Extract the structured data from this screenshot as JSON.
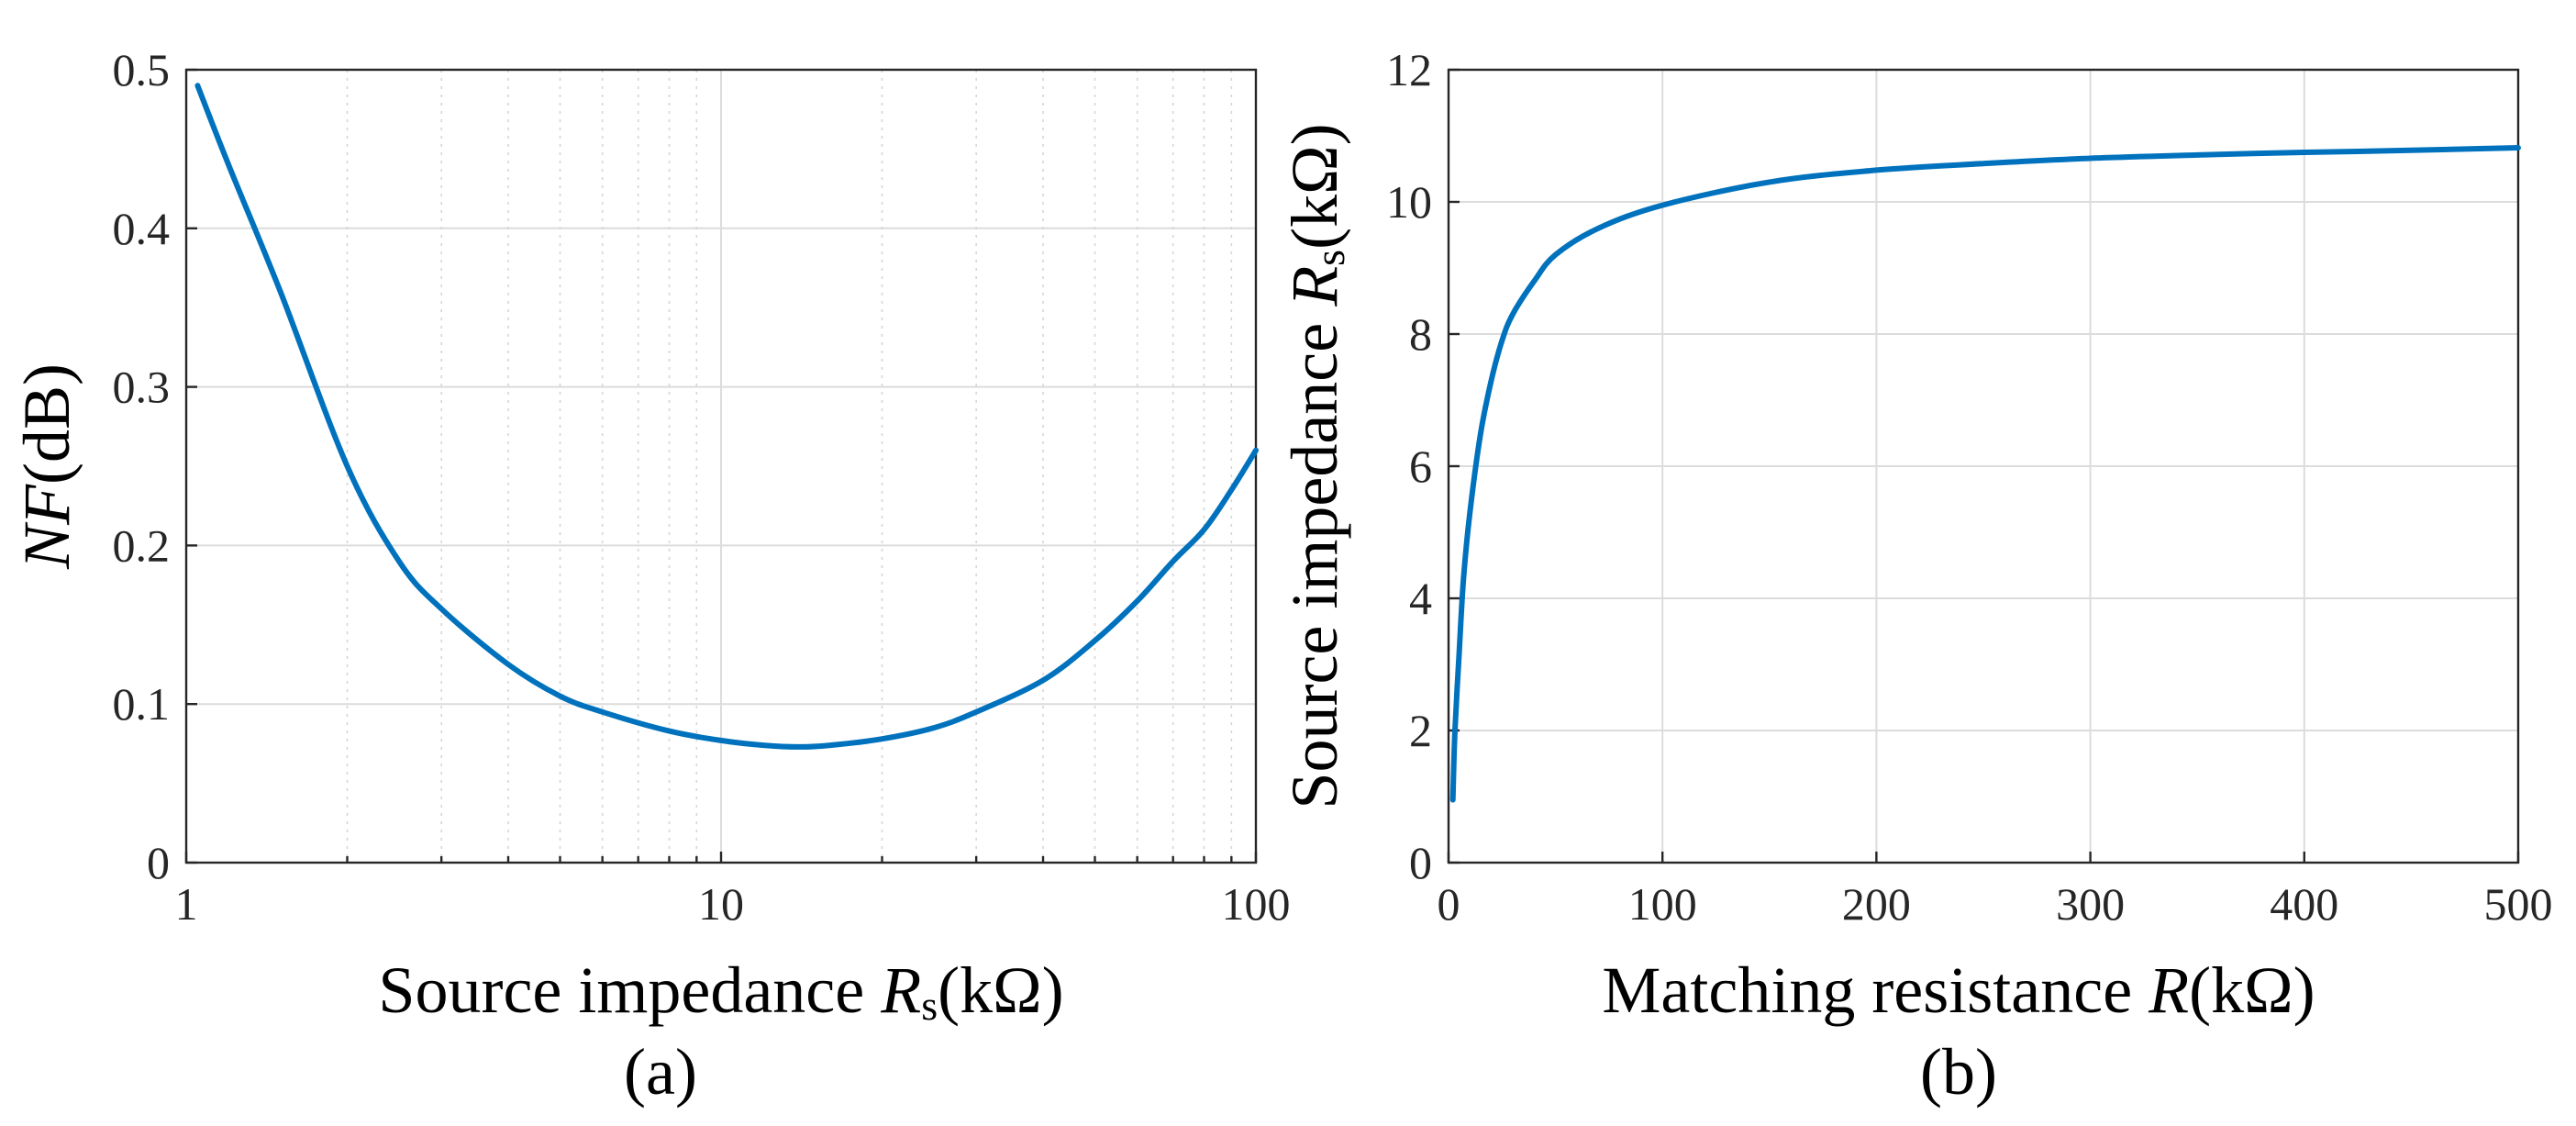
{
  "colors": {
    "curve": "#0072BD",
    "axes": "#262626",
    "grid": "#dcdcdc"
  },
  "chart_data": [
    {
      "id": "a",
      "type": "line",
      "caption": "(a)",
      "xscale": "log",
      "xlim": [
        1,
        100
      ],
      "ylim": [
        0,
        0.5
      ],
      "xticks": [
        1,
        10,
        100
      ],
      "xtick_labels": [
        "1",
        "10",
        "100"
      ],
      "yticks": [
        0,
        0.1,
        0.2,
        0.3,
        0.4,
        0.5
      ],
      "ytick_labels": [
        "0",
        "0.1",
        "0.2",
        "0.3",
        "0.4",
        "0.5"
      ],
      "xlabel": {
        "main": "Source impedance ",
        "var": "R",
        "sub": "s",
        "unit": "(kΩ)"
      },
      "ylabel": {
        "var": "NF",
        "unit": "(dB)"
      },
      "grid": true,
      "series": [
        {
          "name": "NF",
          "x": [
            1.05,
            1.2,
            1.5,
            2,
            2.5,
            3,
            4,
            5,
            6,
            8,
            10,
            12,
            14,
            16,
            20,
            25,
            30,
            40,
            50,
            60,
            70,
            80,
            90,
            100
          ],
          "y": [
            0.49,
            0.44,
            0.36,
            0.25,
            0.19,
            0.16,
            0.125,
            0.105,
            0.095,
            0.083,
            0.077,
            0.074,
            0.073,
            0.074,
            0.078,
            0.085,
            0.095,
            0.115,
            0.14,
            0.165,
            0.19,
            0.21,
            0.235,
            0.26
          ]
        }
      ]
    },
    {
      "id": "b",
      "type": "line",
      "caption": "(b)",
      "xscale": "linear",
      "xlim": [
        0,
        500
      ],
      "ylim": [
        0,
        12
      ],
      "xticks": [
        0,
        100,
        200,
        300,
        400,
        500
      ],
      "xtick_labels": [
        "0",
        "100",
        "200",
        "300",
        "400",
        "500"
      ],
      "yticks": [
        0,
        2,
        4,
        6,
        8,
        10,
        12
      ],
      "ytick_labels": [
        "0",
        "2",
        "4",
        "6",
        "8",
        "10",
        "12"
      ],
      "xlabel": {
        "main": "Matching resistance ",
        "var": "R",
        "sub": "",
        "unit": "(kΩ)"
      },
      "ylabel": {
        "main": "Source impedance ",
        "var": "R",
        "sub": "s",
        "unit": "(kΩ)"
      },
      "grid": true,
      "series": [
        {
          "name": "Rs",
          "x": [
            2,
            3,
            5,
            7,
            10,
            15,
            20,
            25,
            30,
            40,
            50,
            70,
            100,
            150,
            200,
            250,
            300,
            350,
            400,
            450,
            500
          ],
          "y": [
            0.95,
            2.0,
            3.2,
            4.3,
            5.3,
            6.5,
            7.3,
            7.9,
            8.3,
            8.8,
            9.2,
            9.6,
            9.95,
            10.3,
            10.48,
            10.58,
            10.66,
            10.71,
            10.75,
            10.78,
            10.82
          ]
        }
      ]
    }
  ]
}
